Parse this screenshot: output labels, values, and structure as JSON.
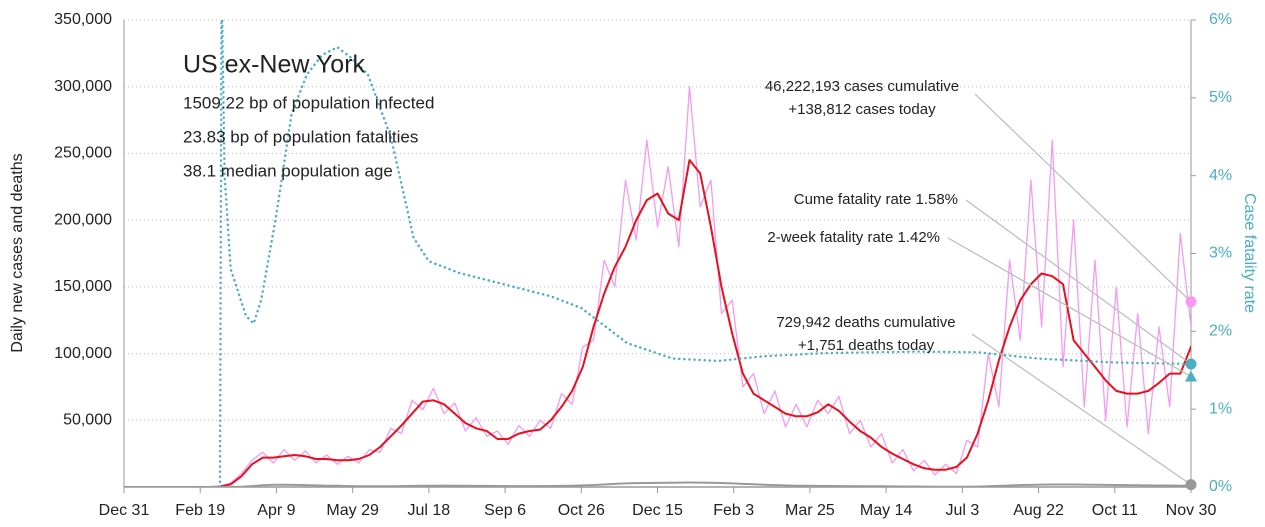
{
  "chart_data": {
    "type": "line",
    "info": {
      "title": "US ex-New York",
      "lines": [
        "1509.22 bp of population infected",
        "23.83 bp of population fatalities",
        "38.1 median population age"
      ]
    },
    "ylabel": "Daily new cases and deaths",
    "y2label": "Case fatality rate",
    "xlim": [
      0,
      700
    ],
    "xticks": [
      {
        "value": 0,
        "label": "Dec 31"
      },
      {
        "value": 50,
        "label": "Feb 19"
      },
      {
        "value": 100,
        "label": "Apr 9"
      },
      {
        "value": 150,
        "label": "May 29"
      },
      {
        "value": 200,
        "label": "Jul 18"
      },
      {
        "value": 250,
        "label": "Sep 6"
      },
      {
        "value": 300,
        "label": "Oct 26"
      },
      {
        "value": 350,
        "label": "Dec 15"
      },
      {
        "value": 400,
        "label": "Feb 3"
      },
      {
        "value": 450,
        "label": "Mar 25"
      },
      {
        "value": 500,
        "label": "May 14"
      },
      {
        "value": 550,
        "label": "Jul 3"
      },
      {
        "value": 600,
        "label": "Aug 22"
      },
      {
        "value": 650,
        "label": "Oct 11"
      },
      {
        "value": 700,
        "label": "Nov 30"
      }
    ],
    "ylim": [
      0,
      350000
    ],
    "yticks": [
      {
        "value": 50000,
        "label": "50,000"
      },
      {
        "value": 100000,
        "label": "100,000"
      },
      {
        "value": 150000,
        "label": "150,000"
      },
      {
        "value": 200000,
        "label": "200,000"
      },
      {
        "value": 250000,
        "label": "250,000"
      },
      {
        "value": 300000,
        "label": "300,000"
      },
      {
        "value": 350000,
        "label": "350,000"
      }
    ],
    "y2lim": [
      0,
      6
    ],
    "y2ticks": [
      {
        "value": 0,
        "label": "0%"
      },
      {
        "value": 1,
        "label": "1%"
      },
      {
        "value": 2,
        "label": "2%"
      },
      {
        "value": 3,
        "label": "3%"
      },
      {
        "value": 4,
        "label": "4%"
      },
      {
        "value": 5,
        "label": "5%"
      },
      {
        "value": 6,
        "label": "6%"
      }
    ],
    "grid": true,
    "x": [
      0,
      7,
      14,
      21,
      28,
      35,
      42,
      49,
      56,
      63,
      70,
      77,
      84,
      91,
      98,
      105,
      112,
      119,
      126,
      133,
      140,
      147,
      154,
      161,
      168,
      175,
      182,
      189,
      196,
      203,
      210,
      217,
      224,
      231,
      238,
      245,
      252,
      259,
      266,
      273,
      280,
      287,
      294,
      301,
      308,
      315,
      322,
      329,
      336,
      343,
      350,
      357,
      364,
      371,
      378,
      385,
      392,
      399,
      406,
      413,
      420,
      427,
      434,
      441,
      448,
      455,
      462,
      469,
      476,
      483,
      490,
      497,
      504,
      511,
      518,
      525,
      532,
      539,
      546,
      553,
      560,
      567,
      574,
      581,
      588,
      595,
      602,
      609,
      616,
      623,
      630,
      637,
      644,
      651,
      658,
      665,
      672,
      679,
      686,
      693,
      700
    ],
    "series": [
      {
        "color": "#f59af0",
        "width": 1.3,
        "values": [
          0,
          0,
          0,
          0,
          0,
          0,
          0,
          0,
          0,
          500,
          3000,
          10000,
          20000,
          26000,
          18000,
          28000,
          20000,
          27000,
          18000,
          24000,
          17000,
          23000,
          18000,
          28000,
          26000,
          44000,
          40000,
          65000,
          58000,
          74000,
          55000,
          63000,
          42000,
          52000,
          38000,
          42000,
          32000,
          46000,
          38000,
          50000,
          44000,
          70000,
          62000,
          105000,
          110000,
          170000,
          150000,
          230000,
          185000,
          260000,
          195000,
          240000,
          180000,
          300000,
          210000,
          230000,
          130000,
          140000,
          75000,
          85000,
          55000,
          72000,
          45000,
          62000,
          45000,
          65000,
          55000,
          68000,
          40000,
          50000,
          30000,
          40000,
          18000,
          28000,
          12000,
          20000,
          9000,
          17000,
          10000,
          35000,
          30000,
          100000,
          60000,
          170000,
          110000,
          230000,
          120000,
          260000,
          90000,
          200000,
          60000,
          170000,
          50000,
          150000,
          45000,
          130000,
          40000,
          120000,
          60000,
          190000,
          120000
        ]
      },
      {
        "color": "#e8101a",
        "width": 2,
        "values": [
          0,
          0,
          0,
          0,
          0,
          0,
          0,
          0,
          0,
          300,
          2000,
          8000,
          17000,
          22000,
          22000,
          23000,
          24000,
          23000,
          21000,
          21000,
          20000,
          20000,
          21000,
          24000,
          30000,
          38000,
          46000,
          55000,
          64000,
          65000,
          62000,
          55000,
          48000,
          44000,
          42000,
          36000,
          36000,
          40000,
          42000,
          43000,
          50000,
          60000,
          72000,
          90000,
          120000,
          145000,
          165000,
          180000,
          200000,
          215000,
          220000,
          205000,
          200000,
          245000,
          235000,
          195000,
          150000,
          115000,
          85000,
          70000,
          65000,
          60000,
          55000,
          53000,
          53000,
          56000,
          62000,
          57000,
          49000,
          42000,
          37000,
          30000,
          25000,
          21000,
          17000,
          14000,
          13000,
          13000,
          15000,
          22000,
          40000,
          65000,
          95000,
          120000,
          140000,
          152000,
          160000,
          158000,
          152000,
          110000,
          100000,
          90000,
          80000,
          72000,
          70000,
          70000,
          72000,
          78000,
          85000,
          85000,
          105000
        ]
      },
      {
        "color": "#999999",
        "width": 2,
        "values": [
          0,
          0,
          0,
          0,
          0,
          0,
          0,
          0,
          0,
          10,
          50,
          200,
          700,
          1300,
          1700,
          1700,
          1600,
          1400,
          1200,
          1000,
          900,
          700,
          600,
          550,
          550,
          600,
          650,
          800,
          900,
          1000,
          1050,
          1000,
          950,
          850,
          800,
          750,
          700,
          700,
          700,
          700,
          750,
          850,
          1000,
          1200,
          1500,
          1900,
          2300,
          2700,
          2900,
          3000,
          3100,
          3200,
          3300,
          3400,
          3300,
          3200,
          3000,
          2700,
          2300,
          2000,
          1700,
          1400,
          1200,
          1000,
          900,
          800,
          750,
          700,
          650,
          600,
          550,
          500,
          450,
          400,
          350,
          300,
          250,
          230,
          220,
          230,
          300,
          500,
          800,
          1100,
          1400,
          1600,
          1800,
          1900,
          1900,
          1850,
          1800,
          1700,
          1600,
          1500,
          1400,
          1300,
          1200,
          1150,
          1100,
          1000,
          1150
        ]
      },
      {
        "color": "#4aaec4",
        "width": 2.5,
        "axis": "y2",
        "line_style": "dotted",
        "x": [
          63,
          64,
          66,
          70,
          75,
          80,
          85,
          90,
          100,
          110,
          120,
          130,
          140,
          150,
          160,
          175,
          190,
          200,
          220,
          250,
          280,
          300,
          330,
          360,
          390,
          420,
          460,
          520,
          560,
          600,
          650,
          700
        ],
        "values": [
          0,
          6.5,
          4,
          2.8,
          2.5,
          2.2,
          2.1,
          2.4,
          3.5,
          4.8,
          5.3,
          5.55,
          5.65,
          5.5,
          5.3,
          4.5,
          3.2,
          2.9,
          2.75,
          2.6,
          2.45,
          2.3,
          1.85,
          1.65,
          1.62,
          1.68,
          1.72,
          1.74,
          1.73,
          1.65,
          1.6,
          1.58
        ]
      }
    ],
    "annotations": [
      {
        "lines": [
          "46,222,193 cases cumulative",
          "+138,812 cases today"
        ],
        "value": 138812,
        "axis": "y",
        "color": "#f59af0",
        "shape": "circle"
      },
      {
        "lines": [
          "Cume fatality rate 1.58%"
        ],
        "value": 1.58,
        "axis": "y2",
        "color": "#4aaec4",
        "shape": "circle"
      },
      {
        "lines": [
          "2-week fatality rate 1.42%"
        ],
        "value": 1.42,
        "axis": "y2",
        "color": "#4aaec4",
        "shape": "triangle"
      },
      {
        "lines": [
          "729,942 deaths cumulative",
          "+1,751 deaths today"
        ],
        "value": 1751,
        "axis": "y",
        "color": "#999999",
        "shape": "circle"
      }
    ]
  }
}
